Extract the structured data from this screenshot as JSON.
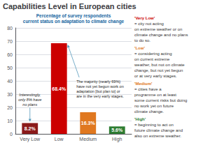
{
  "chart_data": {
    "type": "bar",
    "title": "Capabilities Level in European cities",
    "subtitle": [
      "Percentage of survey respondents",
      "current status on adaptation to climate change"
    ],
    "categories": [
      "Very Low",
      "Low",
      "Medium",
      "High"
    ],
    "values": [
      8.2,
      68.4,
      16.3,
      5.6
    ],
    "value_labels": [
      "8.2%",
      "68.4%",
      "16.3%",
      "5.6%"
    ],
    "data_labels": true,
    "colors": [
      "#8b1a1a",
      "#cc0000",
      "#e07820",
      "#2e7d32"
    ],
    "ylim": [
      0,
      80
    ],
    "yticks": [
      0,
      10,
      20,
      30,
      40,
      50,
      60,
      70,
      80
    ],
    "grid": true,
    "annotations": [
      {
        "text": "Interestingly,\nonly 8% have\nno plans",
        "category": "Very Low"
      },
      {
        "text": "The majority (nearly 69%)\nhave not yet begun work on\nadaptation [but plan to] or\nare in the very early stages.",
        "category": "Low"
      },
      {
        "label": "'Very Low'",
        "color": "#cc0000",
        "text": "= city not acting\non extreme weather or on\nclimate change and no plans\nto do so."
      },
      {
        "label": "'Low'",
        "color": "#e07820",
        "text": "= considering acting\non current extreme\nweather, but not on climate\nchange, but not yet begun\nor at very early stages."
      },
      {
        "label": "'Medium'",
        "color": "#e07820",
        "text": "= cities have a\nprogramme on at least\nsome current risks but doing\nno work yet on future\nclimate change."
      },
      {
        "label": "'High'",
        "color": "#2e7d32",
        "text": "= beginning to act on\nfuture climate change and\nalso on extreme weather."
      }
    ]
  }
}
